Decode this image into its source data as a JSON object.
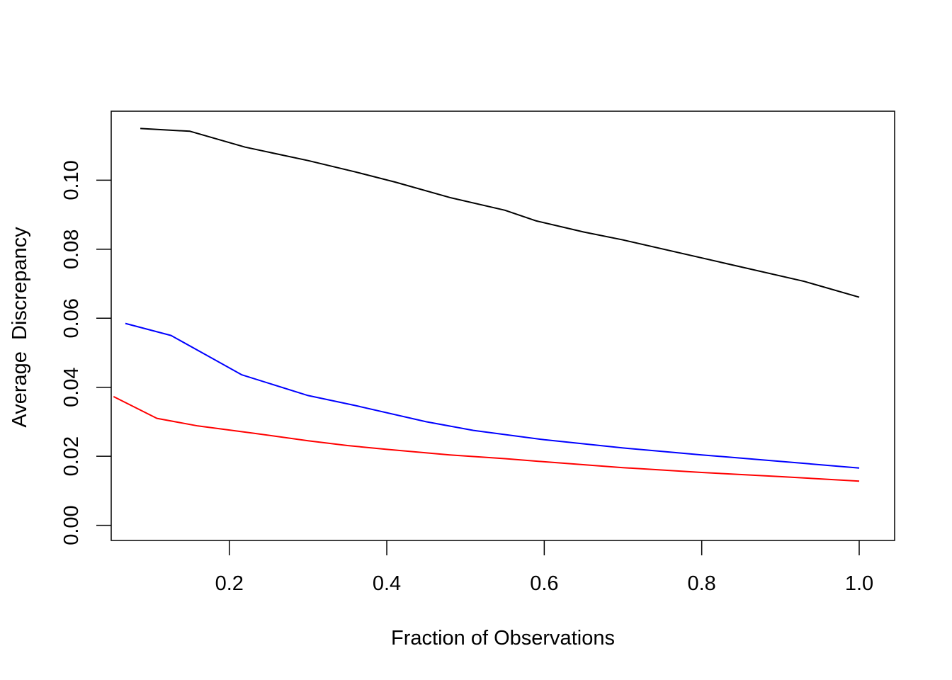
{
  "chart_data": {
    "type": "line",
    "title": "",
    "xlabel": "Fraction of Observations",
    "ylabel": "Average  Discrepancy",
    "xlim": [
      0.05,
      1.045
    ],
    "ylim": [
      -0.0044,
      0.12
    ],
    "xticks": [
      0.2,
      0.4,
      0.6,
      0.8,
      1.0
    ],
    "xtick_labels": [
      "0.2",
      "0.4",
      "0.6",
      "0.8",
      "1.0"
    ],
    "yticks": [
      0.0,
      0.02,
      0.04,
      0.06,
      0.08,
      0.1
    ],
    "ytick_labels": [
      "0.00",
      "0.02",
      "0.04",
      "0.06",
      "0.08",
      "0.10"
    ],
    "grid": false,
    "legend": "none",
    "series": [
      {
        "color": "#000000",
        "x": [
          0.087,
          0.15,
          0.22,
          0.3,
          0.36,
          0.41,
          0.48,
          0.55,
          0.59,
          0.65,
          0.7,
          0.93,
          1.0
        ],
        "y": [
          0.115,
          0.1142,
          0.1096,
          0.1057,
          0.1024,
          0.0995,
          0.095,
          0.0913,
          0.0882,
          0.085,
          0.0827,
          0.0707,
          0.0661
        ]
      },
      {
        "color": "#0000ff",
        "x": [
          0.068,
          0.126,
          0.216,
          0.3,
          0.36,
          0.45,
          0.51,
          0.6,
          0.7,
          0.8,
          0.9,
          1.0
        ],
        "y": [
          0.0585,
          0.055,
          0.0436,
          0.0376,
          0.0347,
          0.03,
          0.0275,
          0.0248,
          0.0224,
          0.0204,
          0.0185,
          0.0166
        ]
      },
      {
        "color": "#ff0000",
        "x": [
          0.053,
          0.108,
          0.16,
          0.23,
          0.3,
          0.35,
          0.4,
          0.48,
          0.55,
          0.6,
          0.7,
          0.8,
          0.9,
          1.0
        ],
        "y": [
          0.0373,
          0.031,
          0.0288,
          0.0267,
          0.0245,
          0.0231,
          0.022,
          0.0204,
          0.0193,
          0.0184,
          0.0167,
          0.0153,
          0.0141,
          0.0128
        ]
      }
    ]
  }
}
